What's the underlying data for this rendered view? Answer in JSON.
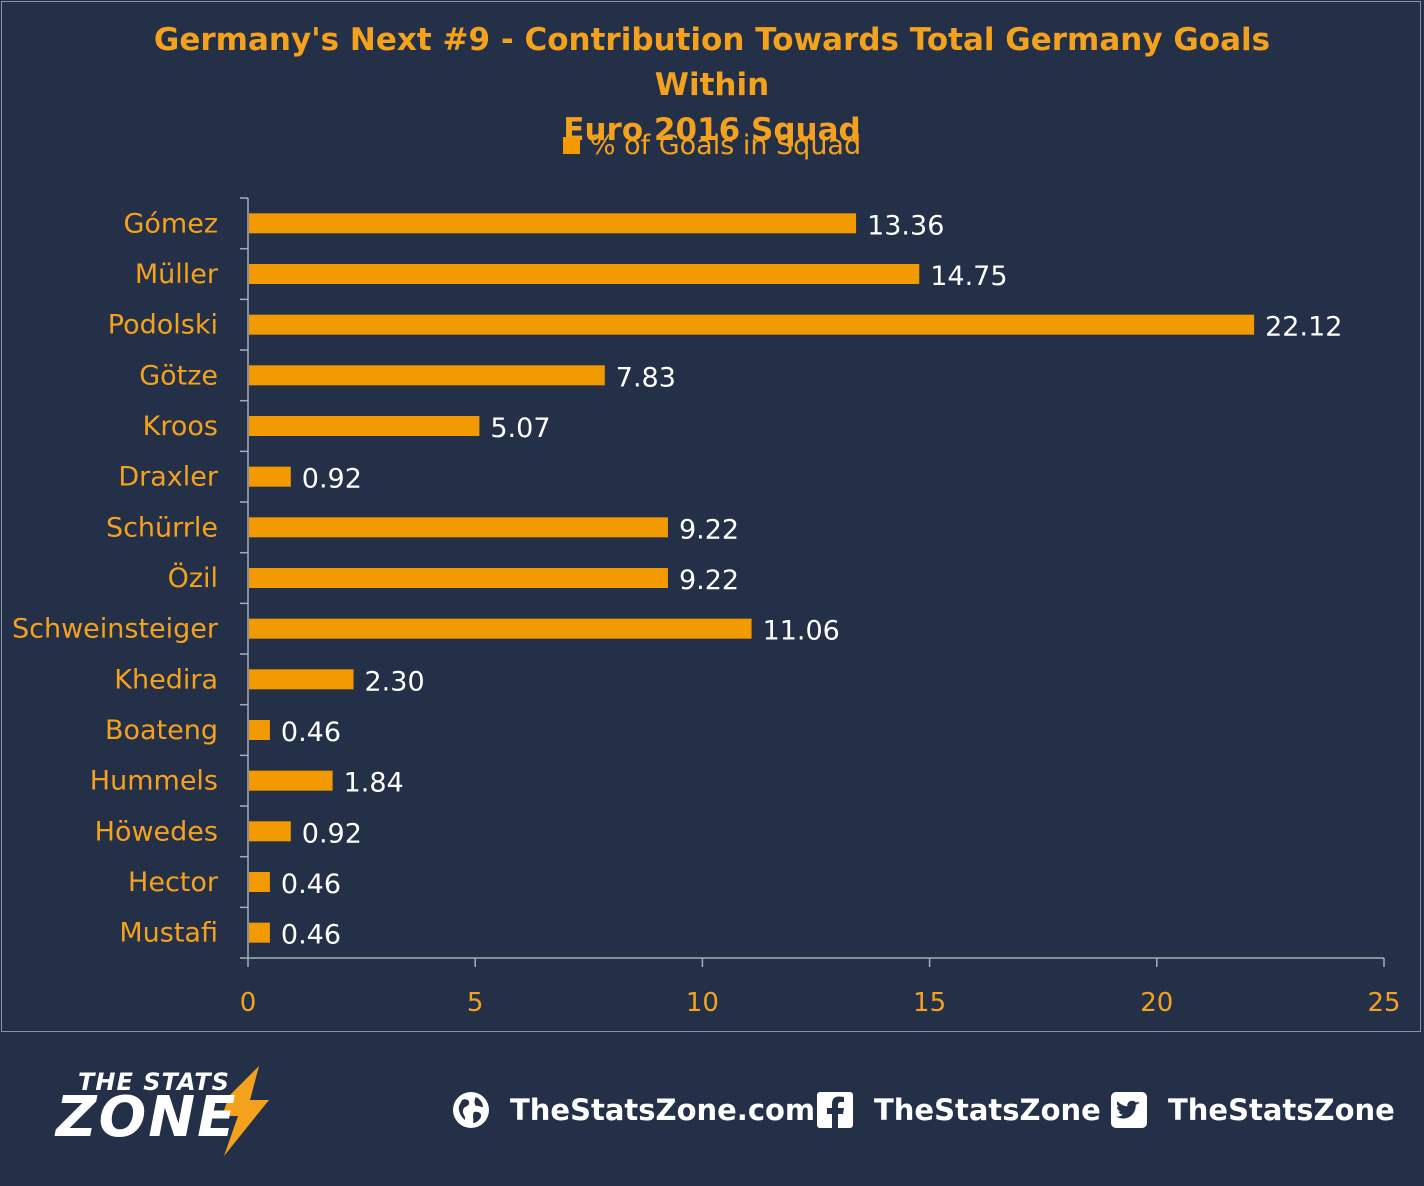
{
  "chart_data": {
    "type": "bar",
    "orientation": "horizontal",
    "title": "Germany's Next #9 - Contribution Towards Total Germany Goals Within Euro 2016 Squad",
    "title_lines": [
      "Germany's Next #9 - Contribution Towards Total Germany Goals Within",
      "Euro 2016 Squad"
    ],
    "legend": "% of Goals in Squad",
    "legend_position": "top",
    "categories": [
      "Gómez",
      "Müller",
      "Podolski",
      "Götze",
      "Kroos",
      "Draxler",
      "Schürrle",
      "Özil",
      "Schweinsteiger",
      "Khedira",
      "Boateng",
      "Hummels",
      "Höwedes",
      "Hector",
      "Mustafi"
    ],
    "values": [
      13.36,
      14.75,
      22.12,
      7.83,
      5.07,
      0.92,
      9.22,
      9.22,
      11.06,
      2.3,
      0.46,
      1.84,
      0.92,
      0.46,
      0.46
    ],
    "value_labels": [
      "13.36",
      "14.75",
      "22.12",
      "7.83",
      "5.07",
      "0.92",
      "9.22",
      "9.22",
      "11.06",
      "2.30",
      "0.46",
      "1.84",
      "0.92",
      "0.46",
      "0.46"
    ],
    "xlim": [
      0,
      25
    ],
    "xticks": [
      0,
      5,
      10,
      15,
      20,
      25
    ],
    "grid": false,
    "colors": {
      "bar": "#f39a00",
      "text_accent": "#f4a21d",
      "value_label": "#ffffff",
      "axis": "#a7aeb9",
      "background": "#243047"
    }
  },
  "footer": {
    "logo": {
      "top": "THE STATS",
      "main": "ZONE"
    },
    "links": [
      {
        "icon": "globe-icon",
        "label": "TheStatsZone.com"
      },
      {
        "icon": "facebook-icon",
        "label": "TheStatsZone"
      },
      {
        "icon": "twitter-icon",
        "label": "TheStatsZone"
      }
    ]
  }
}
